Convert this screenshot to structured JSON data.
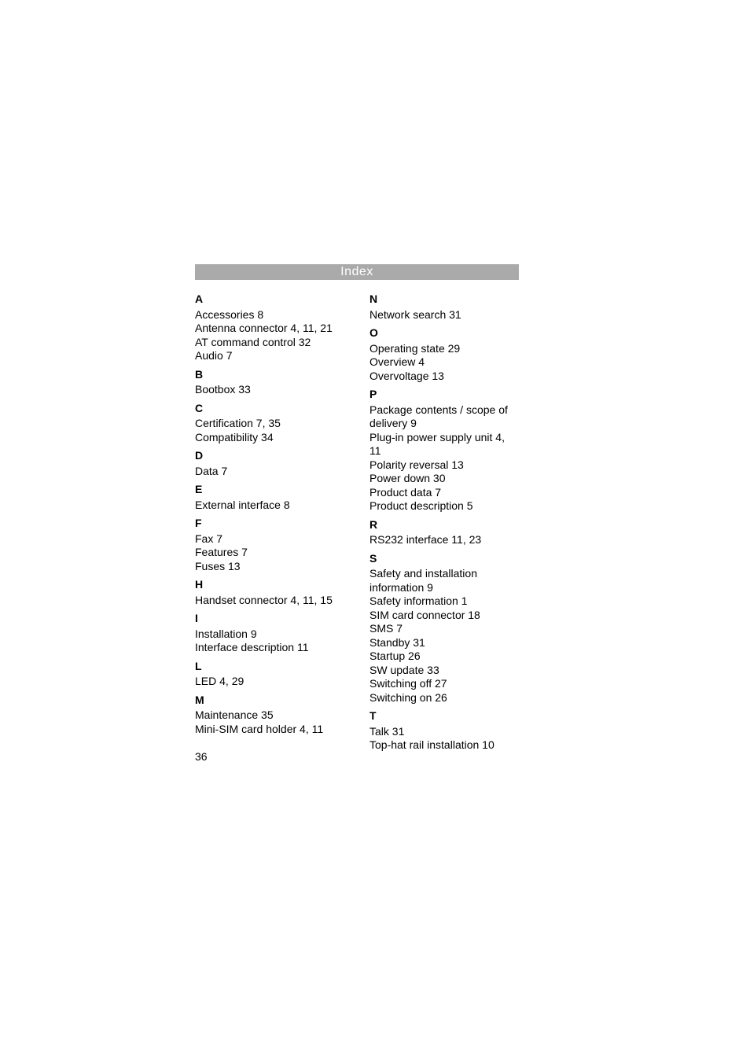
{
  "header": "Index",
  "page_number": "36",
  "colors": {
    "header_bg": "#aaaaaa",
    "header_text": "#ffffff",
    "body_text": "#000000",
    "background": "#ffffff"
  },
  "typography": {
    "header_fontsize": 16,
    "body_fontsize": 14,
    "letter_weight": "bold"
  },
  "left_column": [
    {
      "type": "letter",
      "text": "A"
    },
    {
      "type": "entry",
      "text": "Accessories 8"
    },
    {
      "type": "entry",
      "text": "Antenna connector 4, 11, 21"
    },
    {
      "type": "entry",
      "text": "AT command control 32"
    },
    {
      "type": "entry",
      "text": "Audio 7"
    },
    {
      "type": "letter",
      "text": "B"
    },
    {
      "type": "entry",
      "text": "Bootbox 33"
    },
    {
      "type": "letter",
      "text": "C"
    },
    {
      "type": "entry",
      "text": "Certification 7, 35"
    },
    {
      "type": "entry",
      "text": "Compatibility 34"
    },
    {
      "type": "letter",
      "text": "D"
    },
    {
      "type": "entry",
      "text": "Data 7"
    },
    {
      "type": "letter",
      "text": "E"
    },
    {
      "type": "entry",
      "text": "External interface 8"
    },
    {
      "type": "letter",
      "text": "F"
    },
    {
      "type": "entry",
      "text": "Fax 7"
    },
    {
      "type": "entry",
      "text": "Features 7"
    },
    {
      "type": "entry",
      "text": "Fuses 13"
    },
    {
      "type": "letter",
      "text": "H"
    },
    {
      "type": "entry",
      "text": "Handset connector 4, 11, 15"
    },
    {
      "type": "letter",
      "text": "I"
    },
    {
      "type": "entry",
      "text": "Installation 9"
    },
    {
      "type": "entry",
      "text": "Interface description 11"
    },
    {
      "type": "letter",
      "text": "L"
    },
    {
      "type": "entry",
      "text": "LED 4, 29"
    },
    {
      "type": "letter",
      "text": "M"
    },
    {
      "type": "entry",
      "text": "Maintenance 35"
    },
    {
      "type": "entry",
      "text": "Mini-SIM card holder 4, 11"
    }
  ],
  "right_column": [
    {
      "type": "letter",
      "text": "N"
    },
    {
      "type": "entry",
      "text": "Network search 31"
    },
    {
      "type": "letter",
      "text": "O"
    },
    {
      "type": "entry",
      "text": "Operating state 29"
    },
    {
      "type": "entry",
      "text": "Overview 4"
    },
    {
      "type": "entry",
      "text": "Overvoltage 13"
    },
    {
      "type": "letter",
      "text": "P"
    },
    {
      "type": "entry",
      "text": "Package contents / scope of delivery 9"
    },
    {
      "type": "entry",
      "text": "Plug-in power supply unit 4, 11"
    },
    {
      "type": "entry",
      "text": "Polarity reversal 13"
    },
    {
      "type": "entry",
      "text": "Power down 30"
    },
    {
      "type": "entry",
      "text": "Product data 7"
    },
    {
      "type": "entry",
      "text": "Product description 5"
    },
    {
      "type": "letter",
      "text": "R"
    },
    {
      "type": "entry",
      "text": "RS232 interface 11, 23"
    },
    {
      "type": "letter",
      "text": "S"
    },
    {
      "type": "entry",
      "text": "Safety and installation information 9"
    },
    {
      "type": "entry",
      "text": "Safety information 1"
    },
    {
      "type": "entry",
      "text": "SIM card connector 18"
    },
    {
      "type": "entry",
      "text": "SMS 7"
    },
    {
      "type": "entry",
      "text": "Standby 31"
    },
    {
      "type": "entry",
      "text": "Startup 26"
    },
    {
      "type": "entry",
      "text": "SW update 33"
    },
    {
      "type": "entry",
      "text": "Switching off 27"
    },
    {
      "type": "entry",
      "text": "Switching on 26"
    },
    {
      "type": "letter",
      "text": "T"
    },
    {
      "type": "entry",
      "text": "Talk 31"
    },
    {
      "type": "entry",
      "text": "Top-hat rail installation 10"
    }
  ]
}
